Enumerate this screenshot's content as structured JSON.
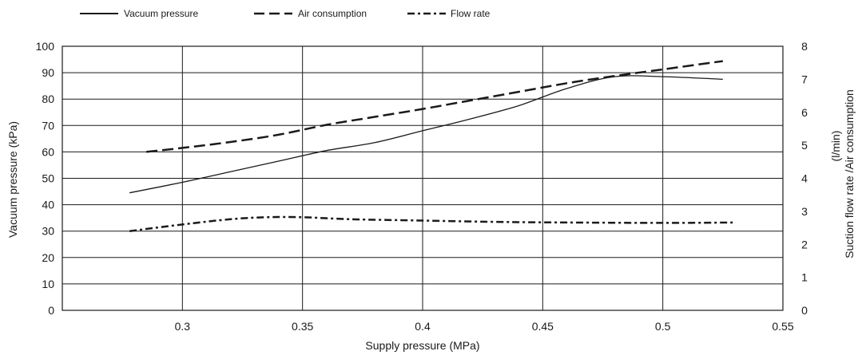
{
  "chart_data": {
    "type": "line",
    "xlabel": "Supply pressure  (MPa)",
    "ylabel_left": "Vacuum pressure  (kPa)",
    "ylabel_right_line1": "Suction flow rate /Air consumption",
    "ylabel_right_line2": "(l/min)",
    "xlim": [
      0.25,
      0.55
    ],
    "x_ticks": [
      0.3,
      0.35,
      0.4,
      0.45,
      0.5,
      0.55
    ],
    "x_tick_labels": [
      "0.3",
      "0.35",
      "0.4",
      "0.45",
      "0.5",
      "0.55"
    ],
    "ylim_left": [
      0,
      100
    ],
    "y_ticks_left": [
      0,
      10,
      20,
      30,
      40,
      50,
      60,
      70,
      80,
      90,
      100
    ],
    "y_tick_labels_left": [
      "0",
      "10",
      "20",
      "30",
      "40",
      "50",
      "60",
      "70",
      "80",
      "90",
      "100"
    ],
    "ylim_right": [
      0,
      8
    ],
    "y_ticks_right": [
      0,
      1,
      2,
      3,
      4,
      5,
      6,
      7,
      8
    ],
    "y_tick_labels_right": [
      "0",
      "1",
      "2",
      "3",
      "4",
      "5",
      "6",
      "7",
      "8"
    ],
    "grid": true,
    "legend_position": "top-left",
    "series": [
      {
        "name": "Vacuum pressure",
        "axis": "left",
        "style": "solid",
        "x": [
          0.278,
          0.3,
          0.32,
          0.34,
          0.36,
          0.38,
          0.4,
          0.42,
          0.44,
          0.46,
          0.48,
          0.5,
          0.525
        ],
        "y": [
          44.5,
          48.5,
          52.5,
          56.5,
          60.5,
          63.5,
          68,
          72.5,
          77.5,
          84,
          88.5,
          88.5,
          87.5
        ]
      },
      {
        "name": "Air consumption",
        "axis": "right",
        "style": "dash",
        "x": [
          0.285,
          0.3,
          0.32,
          0.34,
          0.36,
          0.38,
          0.4,
          0.42,
          0.44,
          0.46,
          0.48,
          0.5,
          0.525
        ],
        "y": [
          4.8,
          4.92,
          5.1,
          5.32,
          5.62,
          5.86,
          6.1,
          6.36,
          6.62,
          6.88,
          7.1,
          7.3,
          7.55
        ]
      },
      {
        "name": "Flow rate",
        "axis": "right",
        "style": "dashdot",
        "x": [
          0.278,
          0.3,
          0.32,
          0.335,
          0.35,
          0.37,
          0.4,
          0.43,
          0.46,
          0.5,
          0.53
        ],
        "y": [
          2.4,
          2.6,
          2.76,
          2.82,
          2.82,
          2.76,
          2.72,
          2.68,
          2.66,
          2.65,
          2.66
        ]
      }
    ]
  },
  "colors": {
    "line": "#1a1a1a",
    "grid": "#1a1a1a",
    "background": "#ffffff"
  }
}
